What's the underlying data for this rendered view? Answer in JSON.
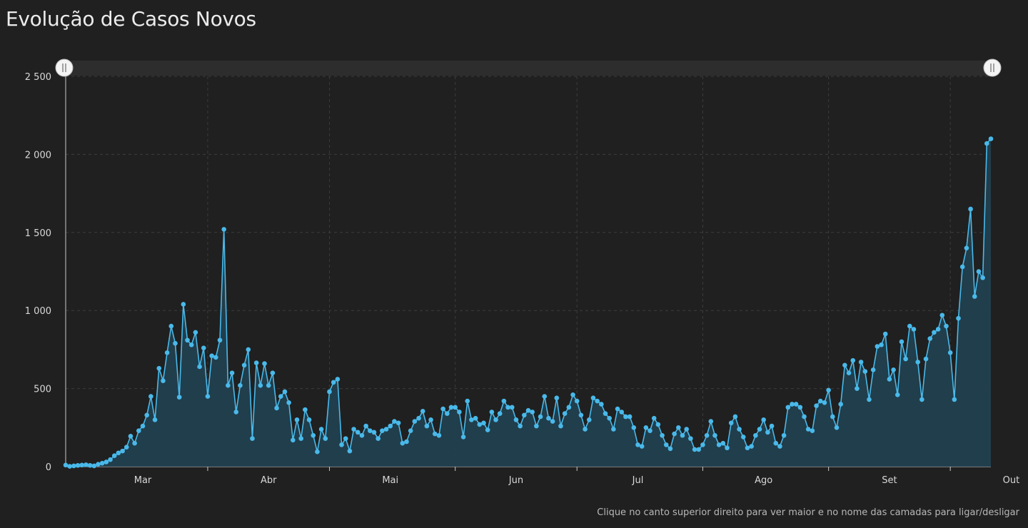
{
  "title": "Evolução de Casos Novos",
  "footer": "Clique no canto superior direito para ver maior e no nome das camadas para ligar/desligar",
  "colors": {
    "background": "#202020",
    "line": "#49b9ea",
    "area": "#22404f",
    "grid": "#3c3c3c",
    "axis": "#c9c9c9"
  },
  "chart_data": {
    "type": "area",
    "title": "Evolução de Casos Novos",
    "xlabel": "",
    "ylabel": "",
    "ylim": [
      0,
      2500
    ],
    "yticks": [
      0,
      500,
      1000,
      1500,
      2000,
      2500
    ],
    "ytick_labels": [
      "0",
      "500",
      "1 000",
      "1 500",
      "2 000",
      "2 500"
    ],
    "x_month_labels": [
      "Mar",
      "Abr",
      "Mai",
      "Jun",
      "Jul",
      "Ago",
      "Set",
      "Out"
    ],
    "x_label_day_index": [
      19,
      50,
      80,
      111,
      141,
      172,
      203,
      233
    ],
    "x_tick_day_index": [
      35,
      65,
      96,
      126,
      157,
      188,
      218
    ],
    "grid": true,
    "legend": "none",
    "has_range_slider": true,
    "series": [
      {
        "values": [
          10,
          2,
          5,
          8,
          10,
          12,
          8,
          5,
          15,
          22,
          30,
          45,
          70,
          88,
          100,
          125,
          195,
          150,
          230,
          260,
          330,
          450,
          300,
          630,
          550,
          730,
          900,
          790,
          445,
          1040,
          810,
          780,
          860,
          640,
          760,
          450,
          710,
          700,
          810,
          1520,
          520,
          600,
          350,
          520,
          650,
          750,
          180,
          665,
          520,
          660,
          520,
          600,
          375,
          450,
          480,
          410,
          170,
          300,
          180,
          365,
          300,
          200,
          95,
          240,
          180,
          480,
          540,
          560,
          140,
          180,
          100,
          240,
          220,
          200,
          260,
          230,
          220,
          180,
          230,
          240,
          260,
          290,
          280,
          150,
          160,
          230,
          290,
          310,
          355,
          260,
          300,
          210,
          200,
          370,
          340,
          380,
          380,
          350,
          190,
          420,
          300,
          310,
          270,
          280,
          235,
          350,
          300,
          340,
          420,
          380,
          380,
          300,
          260,
          330,
          360,
          350,
          260,
          320,
          450,
          310,
          290,
          440,
          260,
          340,
          380,
          460,
          420,
          330,
          240,
          300,
          440,
          420,
          400,
          340,
          310,
          240,
          370,
          350,
          320,
          320,
          250,
          140,
          130,
          250,
          230,
          310,
          270,
          200,
          140,
          115,
          210,
          250,
          200,
          240,
          180,
          110,
          110,
          140,
          200,
          290,
          200,
          140,
          150,
          120,
          280,
          320,
          240,
          190,
          120,
          130,
          200,
          240,
          300,
          220,
          260,
          150,
          130,
          200,
          380,
          400,
          400,
          380,
          320,
          240,
          230,
          390,
          420,
          410,
          490,
          320,
          250,
          400,
          650,
          600,
          680,
          500,
          670,
          610,
          430,
          620,
          770,
          780,
          850,
          560,
          620,
          460,
          800,
          690,
          900,
          880,
          670,
          430,
          690,
          820,
          860,
          880,
          970,
          900,
          730,
          430,
          950,
          1280,
          1400,
          1650,
          1090,
          1250,
          1210,
          2070,
          2100
        ]
      }
    ]
  }
}
